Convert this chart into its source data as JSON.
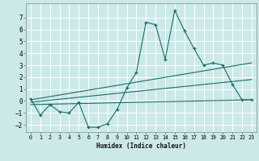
{
  "xlabel": "Humidex (Indice chaleur)",
  "background_color": "#cce9e9",
  "grid_color": "#ffffff",
  "line_color": "#1a6b6b",
  "xlim": [
    -0.5,
    23.5
  ],
  "ylim": [
    -2.6,
    8.2
  ],
  "yticks": [
    -2,
    -1,
    0,
    1,
    2,
    3,
    4,
    5,
    6,
    7
  ],
  "xticks": [
    0,
    1,
    2,
    3,
    4,
    5,
    6,
    7,
    8,
    9,
    10,
    11,
    12,
    13,
    14,
    15,
    16,
    17,
    18,
    19,
    20,
    21,
    22,
    23
  ],
  "main_x": [
    0,
    1,
    2,
    3,
    4,
    5,
    6,
    7,
    8,
    9,
    10,
    11,
    12,
    13,
    14,
    15,
    16,
    17,
    18,
    19,
    20,
    21,
    22,
    23
  ],
  "main_y": [
    0.2,
    -1.2,
    -0.3,
    -0.9,
    -1.0,
    -0.1,
    -2.2,
    -2.2,
    -1.9,
    -0.7,
    1.1,
    2.4,
    6.6,
    6.4,
    3.5,
    7.6,
    5.9,
    4.4,
    3.0,
    3.2,
    3.0,
    1.4,
    0.1,
    0.1
  ],
  "trend_lines": [
    {
      "x": [
        0,
        23
      ],
      "y": [
        -0.3,
        0.1
      ]
    },
    {
      "x": [
        0,
        23
      ],
      "y": [
        -0.1,
        1.8
      ]
    },
    {
      "x": [
        0,
        23
      ],
      "y": [
        0.1,
        3.2
      ]
    }
  ]
}
